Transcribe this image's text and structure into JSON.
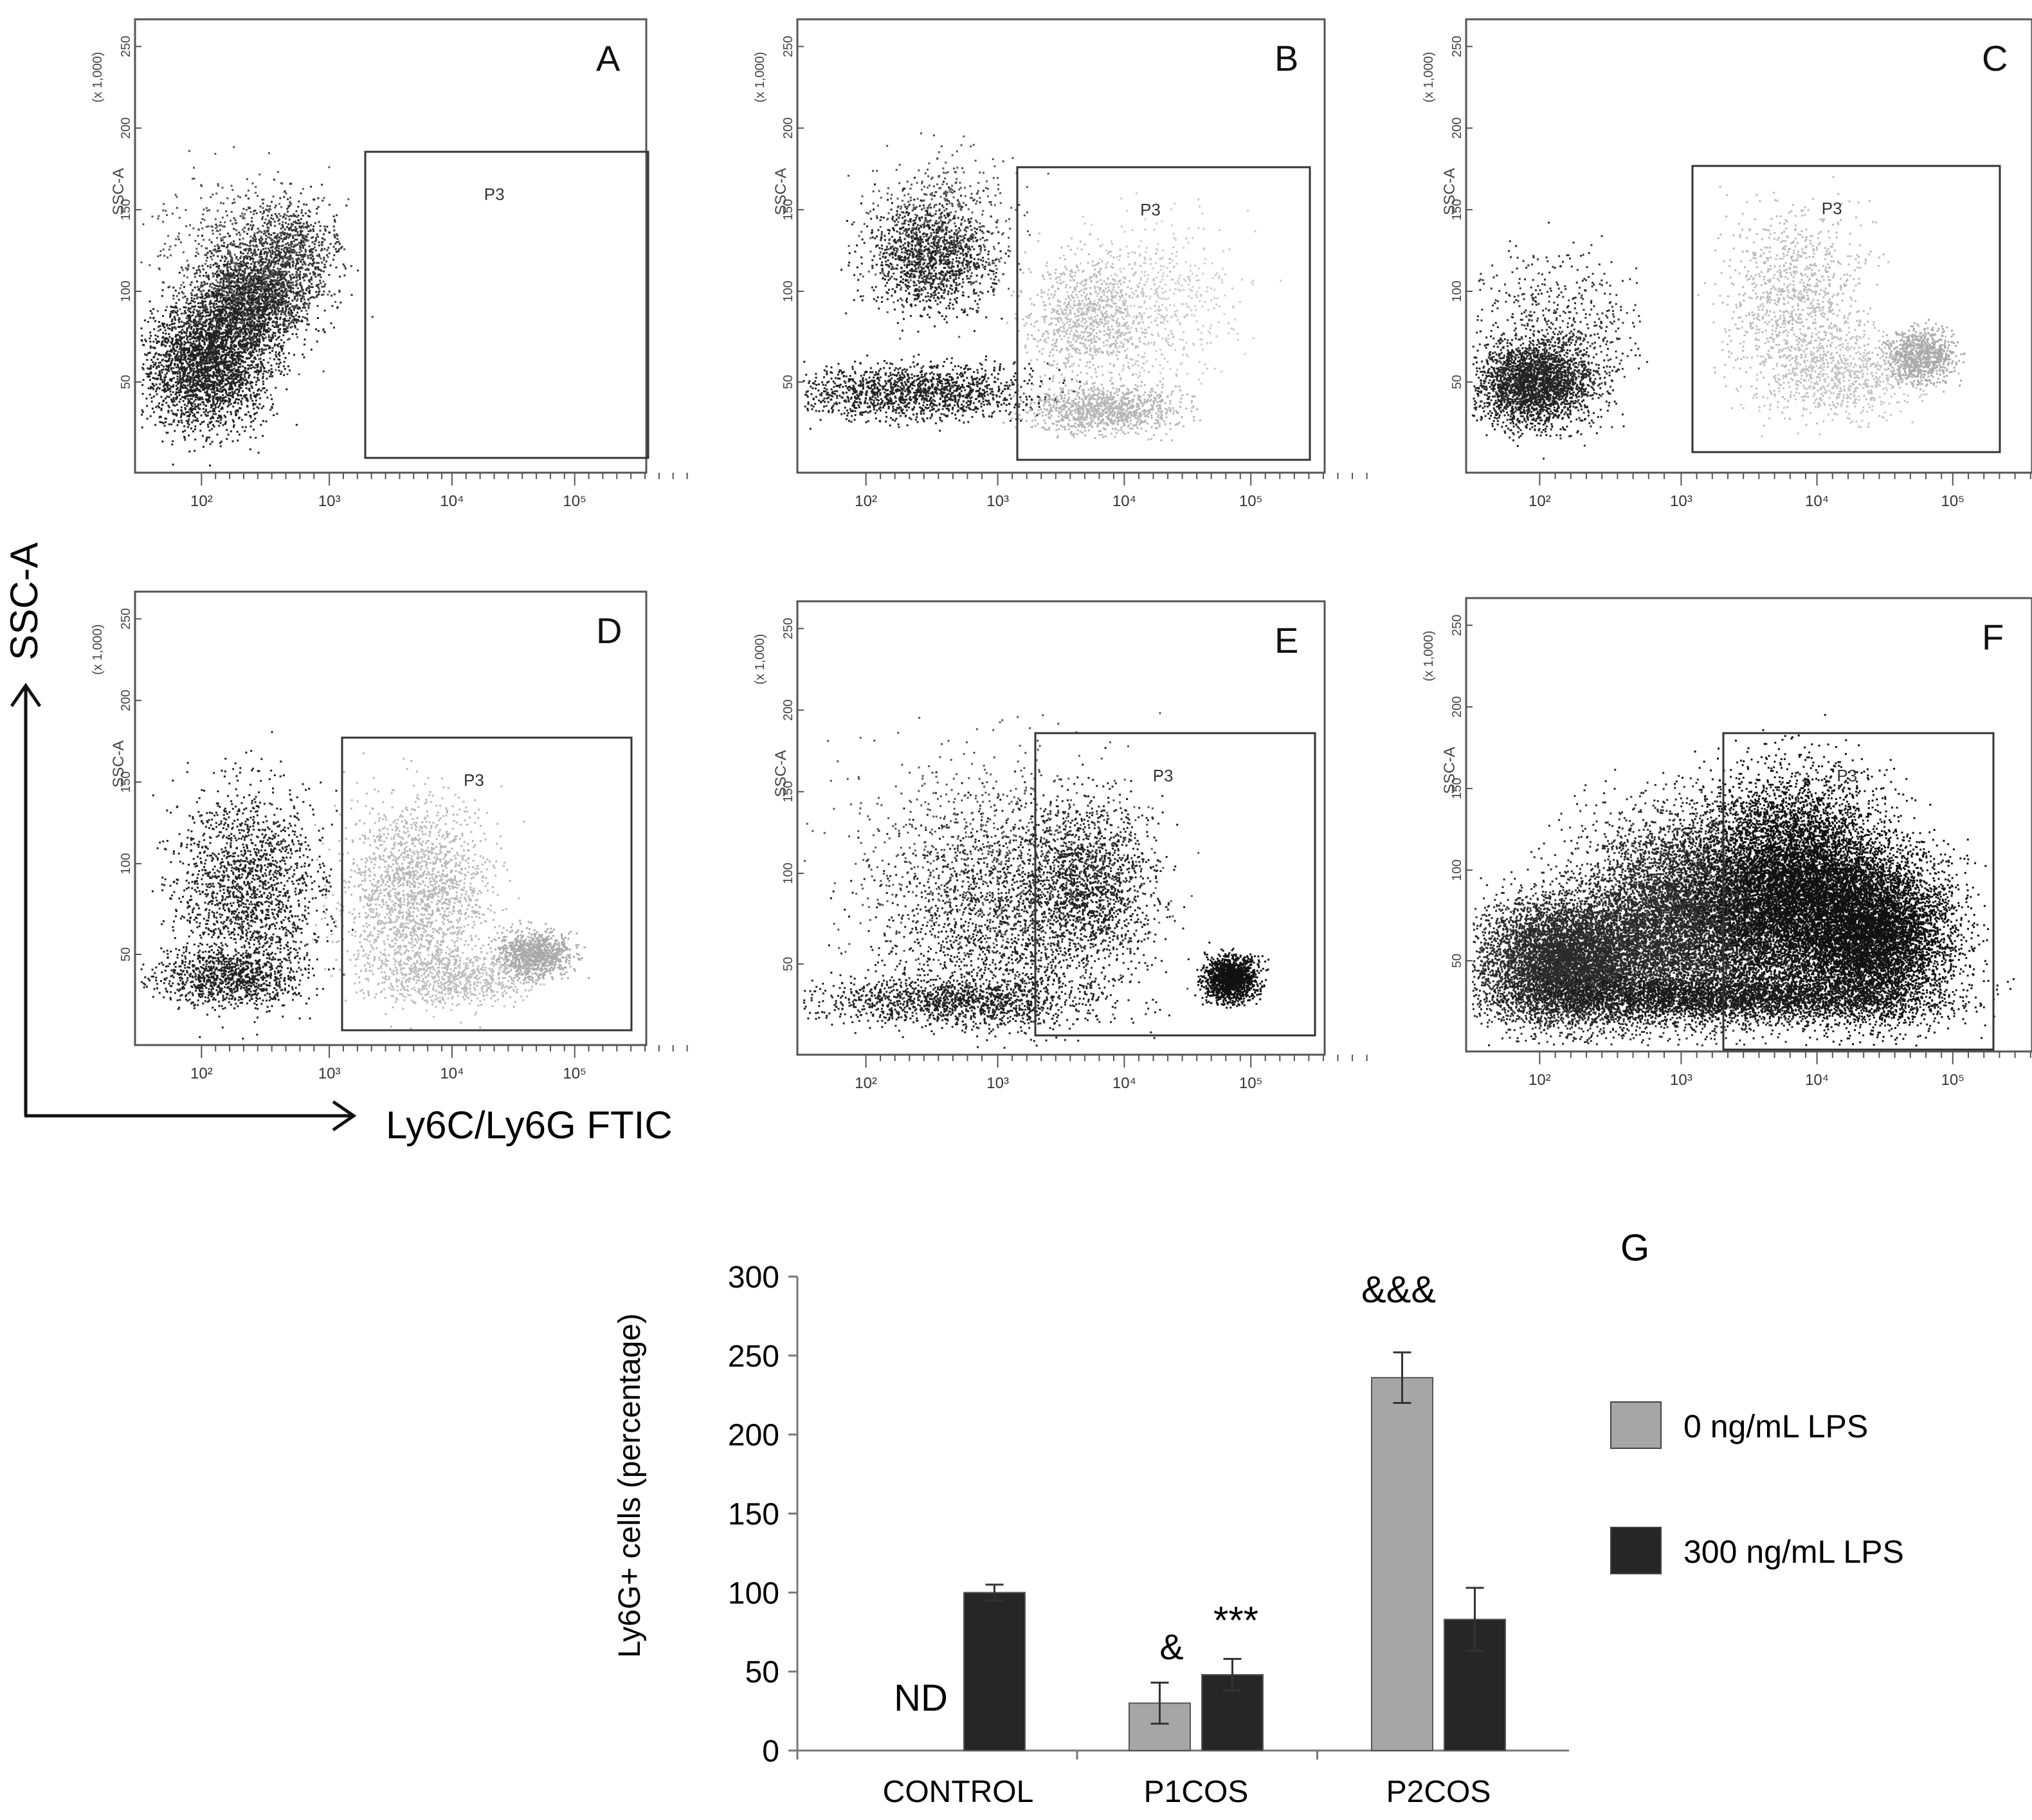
{
  "flow_axis": {
    "x_label": "Ly6C/Ly6G FTIC",
    "y_label": "SSC-A"
  },
  "flow_panels": [
    {
      "letter": "A",
      "gate": "P3",
      "y_axis_label": "SSC-A",
      "y_scale_label": "(x 1,000)",
      "y_ticks": [
        "50",
        "100",
        "150",
        "200",
        "250"
      ],
      "x_ticks": [
        "10²",
        "10³",
        "10⁴",
        "10⁵"
      ]
    },
    {
      "letter": "B",
      "gate": "P3",
      "y_axis_label": "SSC-A",
      "y_scale_label": "(x 1,000)",
      "y_ticks": [
        "50",
        "100",
        "150",
        "200",
        "250"
      ],
      "x_ticks": [
        "10²",
        "10³",
        "10⁴",
        "10⁵"
      ]
    },
    {
      "letter": "C",
      "gate": "P3",
      "y_axis_label": "SSC-A",
      "y_scale_label": "(x 1,000)",
      "y_ticks": [
        "50",
        "100",
        "150",
        "200",
        "250"
      ],
      "x_ticks": [
        "10²",
        "10³",
        "10⁴",
        "10⁵"
      ]
    },
    {
      "letter": "D",
      "gate": "P3",
      "y_axis_label": "SSC-A",
      "y_scale_label": "(x 1,000)",
      "y_ticks": [
        "50",
        "100",
        "150",
        "200",
        "250"
      ],
      "x_ticks": [
        "10²",
        "10³",
        "10⁴",
        "10⁵"
      ]
    },
    {
      "letter": "E",
      "gate": "P3",
      "y_axis_label": "SSC-A",
      "y_scale_label": "(x 1,000)",
      "y_ticks": [
        "50",
        "100",
        "150",
        "200",
        "250"
      ],
      "x_ticks": [
        "10²",
        "10³",
        "10⁴",
        "10⁵"
      ]
    },
    {
      "letter": "F",
      "gate": "P3",
      "y_axis_label": "SSC-A",
      "y_scale_label": "(x 1,000)",
      "y_ticks": [
        "50",
        "100",
        "150",
        "200",
        "250"
      ],
      "x_ticks": [
        "10²",
        "10³",
        "10⁴",
        "10⁵"
      ]
    }
  ],
  "chart_data": {
    "type": "bar",
    "panel_letter": "G",
    "ylabel": "Ly6G+ cells (percentage)",
    "xlabel": "",
    "ylim": [
      0,
      300
    ],
    "yticks": [
      0,
      50,
      100,
      150,
      200,
      250,
      300
    ],
    "categories": [
      "CONTROL",
      "P1COS",
      "P2COS"
    ],
    "series": [
      {
        "name": "0 ng/mL LPS",
        "color": "#a6a6a6",
        "values": [
          null,
          30,
          236
        ],
        "errors": [
          null,
          13,
          16
        ]
      },
      {
        "name": "300 ng/mL LPS",
        "color": "#262626",
        "values": [
          100,
          48,
          83
        ],
        "errors": [
          5,
          10,
          20
        ]
      }
    ],
    "annotations": [
      {
        "category": "CONTROL",
        "series": "0 ng/mL LPS",
        "text": "ND"
      },
      {
        "category": "P1COS",
        "series": "0 ng/mL LPS",
        "text": "&"
      },
      {
        "category": "P1COS",
        "series": "300 ng/mL LPS",
        "text": "***"
      },
      {
        "category": "P2COS",
        "series": "0 ng/mL LPS",
        "text": "&&&"
      }
    ],
    "legend_position": "right"
  }
}
